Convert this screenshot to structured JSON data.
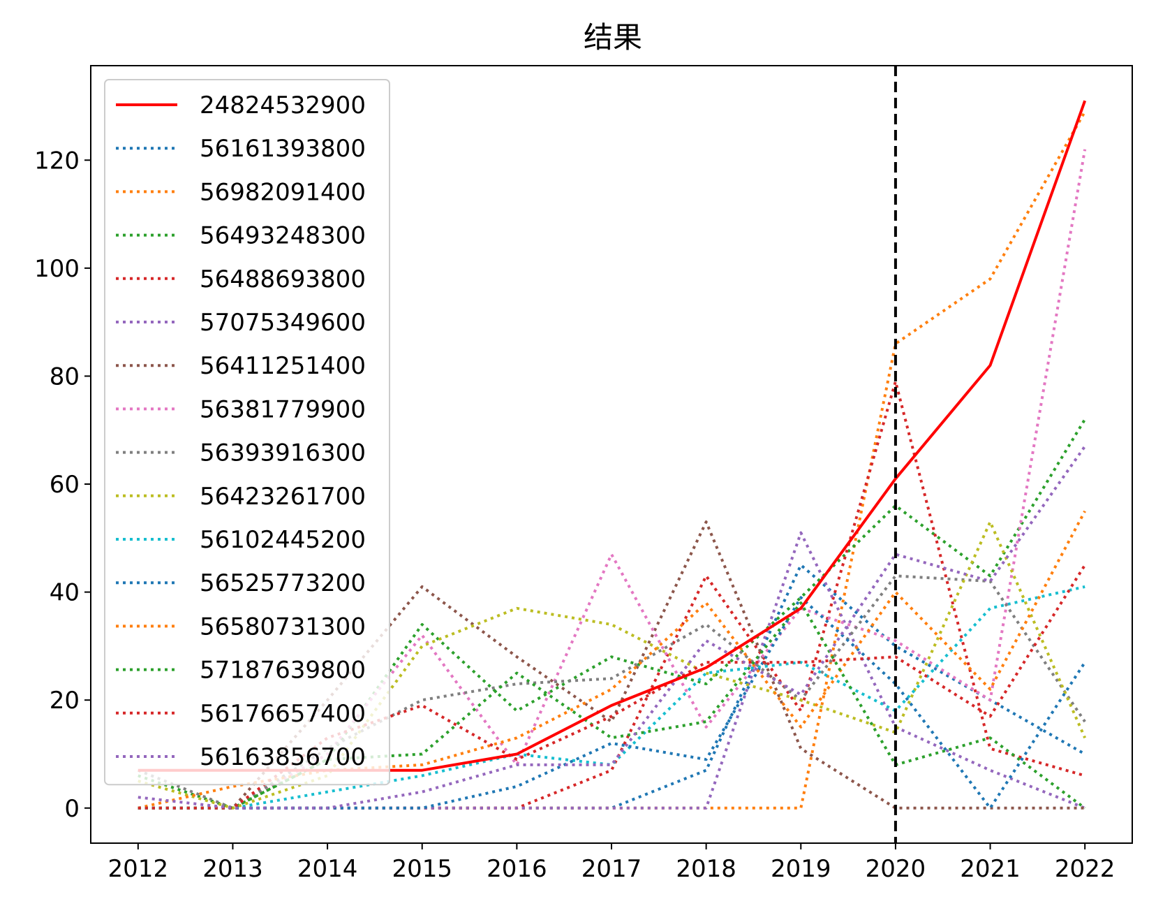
{
  "chart_data": {
    "type": "line",
    "title": "结果",
    "xlabel": "",
    "ylabel": "",
    "x": [
      2012,
      2013,
      2014,
      2015,
      2016,
      2017,
      2018,
      2019,
      2020,
      2021,
      2022
    ],
    "xlim": [
      2011.5,
      2022.5
    ],
    "ylim": [
      -6.5,
      137.5
    ],
    "yticks": [
      0,
      20,
      40,
      60,
      80,
      100,
      120
    ],
    "vline": {
      "x": 2020,
      "color": "#000000",
      "style": "dashed"
    },
    "legend_position": "upper-left",
    "grid": false,
    "series": [
      {
        "name": "24824532900",
        "color": "#ff0000",
        "style": "solid",
        "values": [
          7,
          7,
          7,
          7,
          10,
          19,
          26,
          37,
          61,
          82,
          131
        ]
      },
      {
        "name": "56161393800",
        "color": "#1f77b4",
        "style": "dotted",
        "values": [
          0,
          0,
          0,
          0,
          0,
          0,
          7,
          45,
          30,
          20,
          10
        ]
      },
      {
        "name": "56982091400",
        "color": "#ff7f0e",
        "style": "dotted",
        "values": [
          0,
          0,
          0,
          0,
          0,
          0,
          0,
          0,
          86,
          98,
          129
        ]
      },
      {
        "name": "56493248300",
        "color": "#2ca02c",
        "style": "dotted",
        "values": [
          6,
          0,
          9,
          34,
          18,
          28,
          23,
          39,
          56,
          43,
          72
        ]
      },
      {
        "name": "56488693800",
        "color": "#d62728",
        "style": "dotted",
        "values": [
          0,
          0,
          0,
          0,
          0,
          7,
          43,
          18,
          79,
          11,
          6
        ]
      },
      {
        "name": "57075349600",
        "color": "#9467bd",
        "style": "dotted",
        "values": [
          0,
          0,
          0,
          0,
          0,
          0,
          0,
          51,
          15,
          7,
          0
        ]
      },
      {
        "name": "56411251400",
        "color": "#8c564b",
        "style": "dotted",
        "values": [
          0,
          0,
          20,
          41,
          28,
          16,
          53,
          11,
          0,
          0,
          0
        ]
      },
      {
        "name": "56381779900",
        "color": "#e377c2",
        "style": "dotted",
        "values": [
          0,
          0,
          10,
          32,
          8,
          47,
          15,
          37,
          31,
          20,
          122
        ]
      },
      {
        "name": "56393916300",
        "color": "#7f7f7f",
        "style": "dotted",
        "values": [
          7,
          0,
          11,
          20,
          23,
          24,
          34,
          20,
          43,
          42,
          16
        ]
      },
      {
        "name": "56423261700",
        "color": "#bcbd22",
        "style": "dotted",
        "values": [
          5,
          0,
          6,
          30,
          37,
          34,
          25,
          20,
          14,
          53,
          13
        ]
      },
      {
        "name": "56102445200",
        "color": "#17becf",
        "style": "dotted",
        "values": [
          0,
          0,
          3,
          6,
          10,
          8,
          25,
          27,
          18,
          37,
          41
        ]
      },
      {
        "name": "56525773200",
        "color": "#1f77b4",
        "style": "dotted",
        "values": [
          0,
          0,
          0,
          0,
          4,
          12,
          9,
          39,
          23,
          0,
          27
        ]
      },
      {
        "name": "56580731300",
        "color": "#ff7f0e",
        "style": "dotted",
        "values": [
          0,
          4,
          7,
          8,
          13,
          22,
          38,
          15,
          40,
          22,
          55
        ]
      },
      {
        "name": "57187639800",
        "color": "#2ca02c",
        "style": "dotted",
        "values": [
          0,
          0,
          9,
          10,
          25,
          13,
          16,
          38,
          8,
          13,
          0
        ]
      },
      {
        "name": "56176657400",
        "color": "#d62728",
        "style": "dotted",
        "values": [
          0,
          0,
          13,
          19,
          9,
          17,
          27,
          27,
          28,
          17,
          45
        ]
      },
      {
        "name": "56163856700",
        "color": "#9467bd",
        "style": "dotted",
        "values": [
          2,
          0,
          0,
          3,
          8,
          8,
          31,
          21,
          47,
          42,
          67
        ]
      }
    ]
  }
}
